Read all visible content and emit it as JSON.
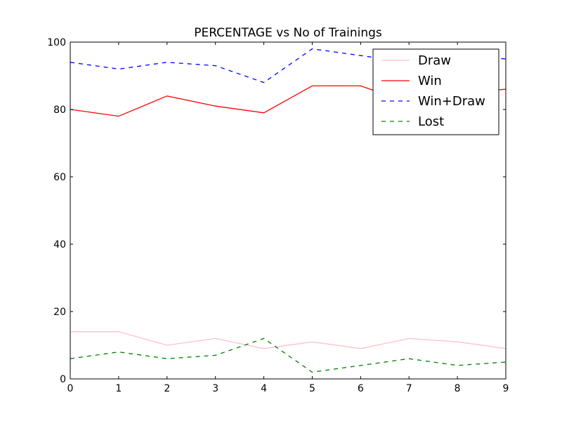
{
  "chart_data": {
    "type": "line",
    "title": "PERCENTAGE vs No of Trainings",
    "xlabel": "",
    "ylabel": "",
    "x": [
      0,
      1,
      2,
      3,
      4,
      5,
      6,
      7,
      8,
      9
    ],
    "xlim": [
      0,
      9
    ],
    "ylim": [
      0,
      100
    ],
    "x_ticks": [
      "0",
      "1",
      "2",
      "3",
      "4",
      "5",
      "6",
      "7",
      "8",
      "9"
    ],
    "y_ticks": [
      "0",
      "20",
      "40",
      "60",
      "80",
      "100"
    ],
    "grid": false,
    "legend_position": "top-right",
    "series": [
      {
        "name": "Draw",
        "color": "#ffc0cb",
        "style": "solid",
        "values": [
          14,
          14,
          10,
          12,
          9,
          11,
          9,
          12,
          11,
          9
        ]
      },
      {
        "name": "Win",
        "color": "#ff0000",
        "style": "solid",
        "values": [
          80,
          78,
          84,
          81,
          79,
          87,
          87,
          82,
          85,
          86
        ]
      },
      {
        "name": "Win+Draw",
        "color": "#0000ff",
        "style": "dashed",
        "values": [
          94,
          92,
          94,
          93,
          88,
          98,
          96,
          94,
          96,
          95
        ]
      },
      {
        "name": "Lost",
        "color": "#008000",
        "style": "dashed",
        "values": [
          6,
          8,
          6,
          7,
          12,
          2,
          4,
          6,
          4,
          5
        ]
      }
    ]
  }
}
